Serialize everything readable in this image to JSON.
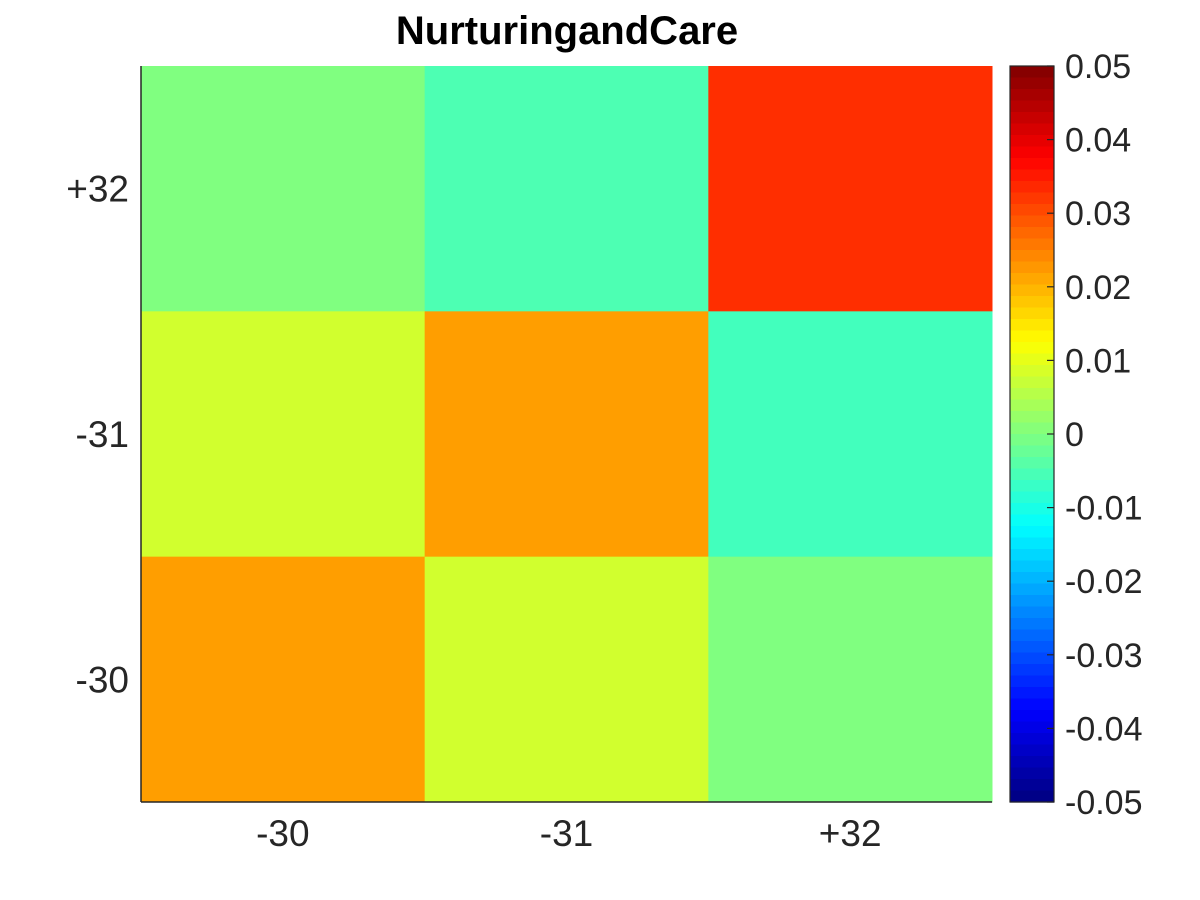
{
  "chart_data": {
    "type": "heatmap",
    "title": "NurturingandCare",
    "xlabel": "",
    "ylabel": "",
    "x_categories": [
      "-30",
      "-31",
      "+32"
    ],
    "y_categories": [
      "+32",
      "-31",
      "-30"
    ],
    "values": [
      [
        0.0,
        -0.005,
        0.033
      ],
      [
        0.008,
        0.022,
        -0.006
      ],
      [
        0.022,
        0.008,
        0.0
      ]
    ],
    "colormap": "jet",
    "clim": [
      -0.05,
      0.05
    ],
    "colorbar_ticks": [
      "0.05",
      "0.04",
      "0.03",
      "0.02",
      "0.01",
      "0",
      "-0.01",
      "-0.02",
      "-0.03",
      "-0.04",
      "-0.05"
    ],
    "colorbar_tick_values": [
      0.05,
      0.04,
      0.03,
      0.02,
      0.01,
      0,
      -0.01,
      -0.02,
      -0.03,
      -0.04,
      -0.05
    ],
    "colorbar_position": "right",
    "grid": false
  }
}
